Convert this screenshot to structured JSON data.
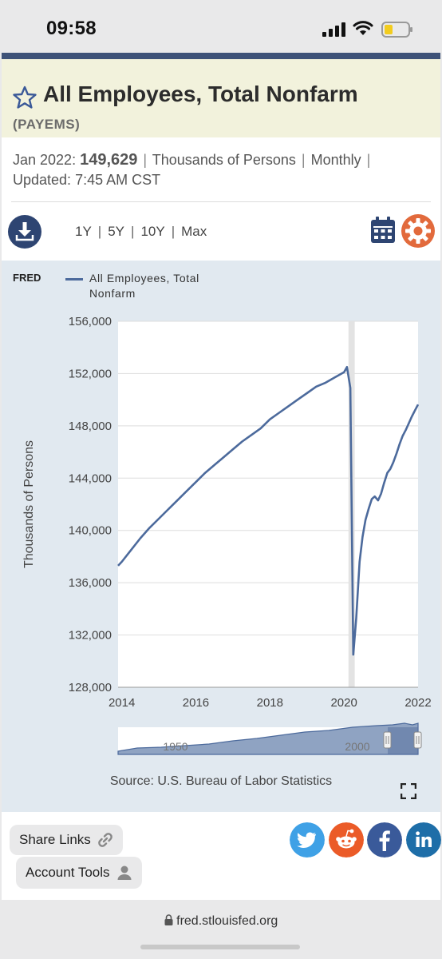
{
  "status_bar": {
    "time": "09:58"
  },
  "series": {
    "title": "All Employees, Total Nonfarm",
    "id": "(PAYEMS)",
    "obs_date": "Jan 2022:",
    "obs_value": "149,629",
    "units": "Thousands of Persons",
    "frequency": "Monthly",
    "updated_label": "Updated:",
    "updated_time": "7:45 AM CST"
  },
  "range_tabs": [
    "1Y",
    "5Y",
    "10Y",
    "Max"
  ],
  "chart_data": {
    "type": "line",
    "title": "",
    "logo": "FRED",
    "legend": "All Employees, Total Nonfarm",
    "ylabel": "Thousands of Persons",
    "xlabel": "",
    "ylim": [
      128000,
      156000
    ],
    "y_ticks": [
      128000,
      132000,
      136000,
      140000,
      144000,
      148000,
      152000,
      156000
    ],
    "y_tick_labels": [
      "128,000",
      "132,000",
      "136,000",
      "140,000",
      "144,000",
      "148,000",
      "152,000",
      "156,000"
    ],
    "xlim": [
      2013.9,
      2022.0
    ],
    "x_ticks": [
      2014,
      2016,
      2018,
      2020,
      2022
    ],
    "x_tick_labels": [
      "2014",
      "2016",
      "2018",
      "2020",
      "2022"
    ],
    "recession_band": [
      2020.12,
      2020.29
    ],
    "color": "#4c6a9c",
    "grid": true,
    "series": [
      {
        "name": "All Employees, Total Nonfarm",
        "x": [
          2013.9,
          2014.0,
          2014.25,
          2014.5,
          2014.75,
          2015.0,
          2015.25,
          2015.5,
          2015.75,
          2016.0,
          2016.25,
          2016.5,
          2016.75,
          2017.0,
          2017.25,
          2017.5,
          2017.75,
          2018.0,
          2018.25,
          2018.5,
          2018.75,
          2019.0,
          2019.25,
          2019.5,
          2019.75,
          2020.0,
          2020.08,
          2020.17,
          2020.25,
          2020.33,
          2020.42,
          2020.5,
          2020.58,
          2020.67,
          2020.75,
          2020.83,
          2020.92,
          2021.0,
          2021.08,
          2021.17,
          2021.25,
          2021.33,
          2021.42,
          2021.5,
          2021.58,
          2021.67,
          2021.75,
          2021.83,
          2021.92,
          2022.0
        ],
        "values": [
          137300,
          137600,
          138500,
          139400,
          140200,
          140900,
          141600,
          142300,
          143000,
          143700,
          144400,
          145000,
          145600,
          146200,
          146800,
          147300,
          147800,
          148500,
          149000,
          149500,
          150000,
          150500,
          151000,
          151300,
          151700,
          152100,
          152500,
          150900,
          130500,
          133300,
          137600,
          139500,
          140800,
          141700,
          142400,
          142600,
          142300,
          142800,
          143600,
          144400,
          144700,
          145200,
          145900,
          146600,
          147200,
          147700,
          148200,
          148700,
          149200,
          149629
        ]
      }
    ],
    "navigator": {
      "labels": [
        "1950",
        "2000"
      ]
    },
    "source": "Source: U.S. Bureau of Labor Statistics"
  },
  "footer": {
    "share_links": "Share Links",
    "account_tools": "Account Tools",
    "url": "fred.stlouisfed.org"
  },
  "colors": {
    "accent": "#3e5278",
    "twitter": "#3fa1e6",
    "reddit": "#eb5b28",
    "facebook": "#3a5a9a",
    "linkedin": "#1e6ea8"
  }
}
